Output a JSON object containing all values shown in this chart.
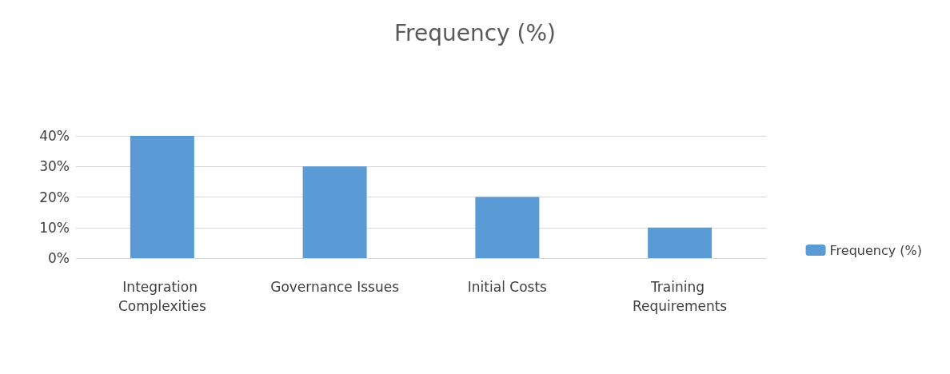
{
  "chart_data": {
    "type": "bar",
    "title": "Frequency (%)",
    "categories": [
      "Integration Complexities",
      "Governance Issues",
      "Initial Costs",
      "Training Requirements"
    ],
    "series": [
      {
        "name": "Frequency (%)",
        "color": "#5b9bd5",
        "values": [
          40,
          30,
          20,
          10
        ]
      }
    ],
    "ylim": [
      0,
      40
    ],
    "yticks": [
      {
        "value": 0,
        "label": "0%"
      },
      {
        "value": 10,
        "label": "10%"
      },
      {
        "value": 20,
        "label": "20%"
      },
      {
        "value": 30,
        "label": "30%"
      },
      {
        "value": 40,
        "label": "40%"
      }
    ],
    "grid": "y",
    "legend": "bottom right"
  }
}
